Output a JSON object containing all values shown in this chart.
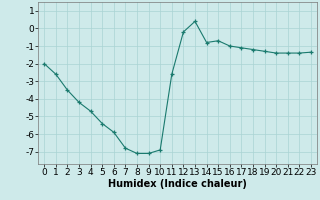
{
  "x": [
    0,
    1,
    2,
    3,
    4,
    5,
    6,
    7,
    8,
    9,
    10,
    11,
    12,
    13,
    14,
    15,
    16,
    17,
    18,
    19,
    20,
    21,
    22,
    23
  ],
  "y": [
    -2.0,
    -2.6,
    -3.5,
    -4.2,
    -4.7,
    -5.4,
    -5.9,
    -6.8,
    -7.1,
    -7.1,
    -6.9,
    -2.6,
    -0.2,
    0.4,
    -0.8,
    -0.7,
    -1.0,
    -1.1,
    -1.2,
    -1.3,
    -1.4,
    -1.4,
    -1.4,
    -1.35
  ],
  "line_color": "#1a7a6e",
  "marker": "+",
  "marker_size": 3,
  "background_color": "#ceeaea",
  "grid_color": "#aad4d4",
  "xlabel": "Humidex (Indice chaleur)",
  "xlim": [
    -0.5,
    23.5
  ],
  "ylim": [
    -7.7,
    1.5
  ],
  "yticks": [
    1,
    0,
    -1,
    -2,
    -3,
    -4,
    -5,
    -6,
    -7
  ],
  "xticks": [
    0,
    1,
    2,
    3,
    4,
    5,
    6,
    7,
    8,
    9,
    10,
    11,
    12,
    13,
    14,
    15,
    16,
    17,
    18,
    19,
    20,
    21,
    22,
    23
  ],
  "xlabel_fontsize": 7,
  "tick_fontsize": 6.5
}
